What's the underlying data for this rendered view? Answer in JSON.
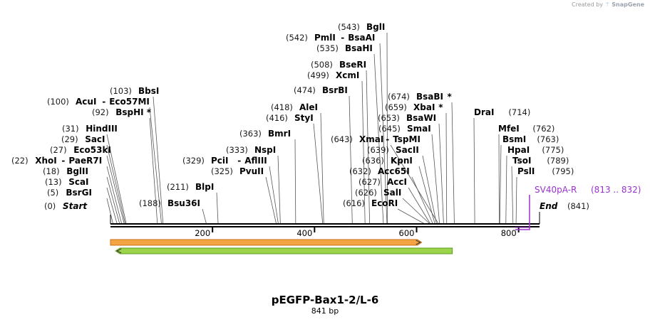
{
  "credit": {
    "prefix": "Created by",
    "brand": "SnapGene"
  },
  "map": {
    "title": "pEGFP-Bax1-2/L-6",
    "length_label": "841 bp",
    "length_bp": 841,
    "ticks": [
      "200",
      "400",
      "600",
      "800"
    ],
    "tick_values": [
      200,
      400,
      600,
      800
    ],
    "start": {
      "pos": "(0)",
      "label": "Start",
      "bp": 0
    },
    "end": {
      "pos": "(841)",
      "label": "End",
      "bp": 841
    },
    "feature": {
      "name": "SV40pA-R",
      "range": "(813 .. 832)",
      "start_bp": 813,
      "end_bp": 832,
      "color": "#9a32cd"
    },
    "arrows": [
      {
        "name": "orange-forward-arrow",
        "from_bp": 0,
        "to_bp": 610,
        "direction": "forward",
        "color": "#f4a442",
        "edge": "#c8721a"
      },
      {
        "name": "green-reverse-arrow",
        "from_bp": 10,
        "to_bp": 670,
        "direction": "reverse",
        "color": "#9bd44a",
        "edge": "#5d9c1c"
      }
    ],
    "sites": [
      {
        "pos": "(5)",
        "name": "BsrGI",
        "bp": 5,
        "star": ""
      },
      {
        "pos": "(13)",
        "name": "ScaI",
        "bp": 13,
        "star": ""
      },
      {
        "pos": "(18)",
        "name": "BglII",
        "bp": 18,
        "star": ""
      },
      {
        "pos": "(22)",
        "name": "XhoI",
        "name2": "PaeR7I",
        "bp": 22,
        "star": ""
      },
      {
        "pos": "(27)",
        "name": "Eco53kI",
        "bp": 27,
        "star": ""
      },
      {
        "pos": "(29)",
        "name": "SacI",
        "bp": 29,
        "star": ""
      },
      {
        "pos": "(31)",
        "name": "HindIII",
        "bp": 31,
        "star": ""
      },
      {
        "pos": "(92)",
        "name": "BspHI",
        "bp": 92,
        "star": "*"
      },
      {
        "pos": "(100)",
        "name": "AcuI",
        "name2": "Eco57MI",
        "bp": 100,
        "star": ""
      },
      {
        "pos": "(103)",
        "name": "BbsI",
        "bp": 103,
        "star": ""
      },
      {
        "pos": "(188)",
        "name": "Bsu36I",
        "bp": 188,
        "star": ""
      },
      {
        "pos": "(211)",
        "name": "BlpI",
        "bp": 211,
        "star": ""
      },
      {
        "pos": "(325)",
        "name": "PvuII",
        "bp": 325,
        "star": ""
      },
      {
        "pos": "(329)",
        "name": "PciI",
        "name2": "AflIII",
        "bp": 329,
        "star": ""
      },
      {
        "pos": "(333)",
        "name": "NspI",
        "bp": 333,
        "star": ""
      },
      {
        "pos": "(363)",
        "name": "BmrI",
        "bp": 363,
        "star": ""
      },
      {
        "pos": "(416)",
        "name": "StyI",
        "bp": 416,
        "star": ""
      },
      {
        "pos": "(418)",
        "name": "AleI",
        "bp": 418,
        "star": ""
      },
      {
        "pos": "(474)",
        "name": "BsrBI",
        "bp": 474,
        "star": ""
      },
      {
        "pos": "(499)",
        "name": "XcmI",
        "bp": 499,
        "star": ""
      },
      {
        "pos": "(508)",
        "name": "BseRI",
        "bp": 508,
        "star": ""
      },
      {
        "pos": "(535)",
        "name": "BsaHI",
        "bp": 535,
        "star": ""
      },
      {
        "pos": "(542)",
        "name": "PmlI",
        "name2": "BsaAI",
        "bp": 542,
        "star": ""
      },
      {
        "pos": "(543)",
        "name": "BglI",
        "bp": 543,
        "star": ""
      },
      {
        "pos": "(616)",
        "name": "EcoRI",
        "bp": 616,
        "star": ""
      },
      {
        "pos": "(626)",
        "name": "SalI",
        "bp": 626,
        "star": ""
      },
      {
        "pos": "(627)",
        "name": "AccI",
        "bp": 627,
        "star": ""
      },
      {
        "pos": "(632)",
        "name": "Acc65I",
        "bp": 632,
        "star": ""
      },
      {
        "pos": "(636)",
        "name": "KpnI",
        "bp": 636,
        "star": ""
      },
      {
        "pos": "(639)",
        "name": "SacII",
        "bp": 639,
        "star": ""
      },
      {
        "pos": "(643)",
        "name": "XmaI",
        "name2": "TspMI",
        "bp": 643,
        "star": ""
      },
      {
        "pos": "(645)",
        "name": "SmaI",
        "bp": 645,
        "star": ""
      },
      {
        "pos": "(653)",
        "name": "BsaWI",
        "bp": 653,
        "star": ""
      },
      {
        "pos": "(659)",
        "name": "XbaI",
        "bp": 659,
        "star": "*"
      },
      {
        "pos": "(674)",
        "name": "BsaBI",
        "bp": 674,
        "star": "*"
      },
      {
        "pos": "(714)",
        "name": "DraI",
        "bp": 714,
        "star": ""
      },
      {
        "pos": "(762)",
        "name": "MfeI",
        "bp": 762,
        "star": ""
      },
      {
        "pos": "(763)",
        "name": "BsmI",
        "bp": 763,
        "star": ""
      },
      {
        "pos": "(775)",
        "name": "HpaI",
        "bp": 775,
        "star": ""
      },
      {
        "pos": "(789)",
        "name": "TsoI",
        "bp": 789,
        "star": ""
      },
      {
        "pos": "(795)",
        "name": "PslI",
        "bp": 795,
        "star": ""
      }
    ]
  }
}
